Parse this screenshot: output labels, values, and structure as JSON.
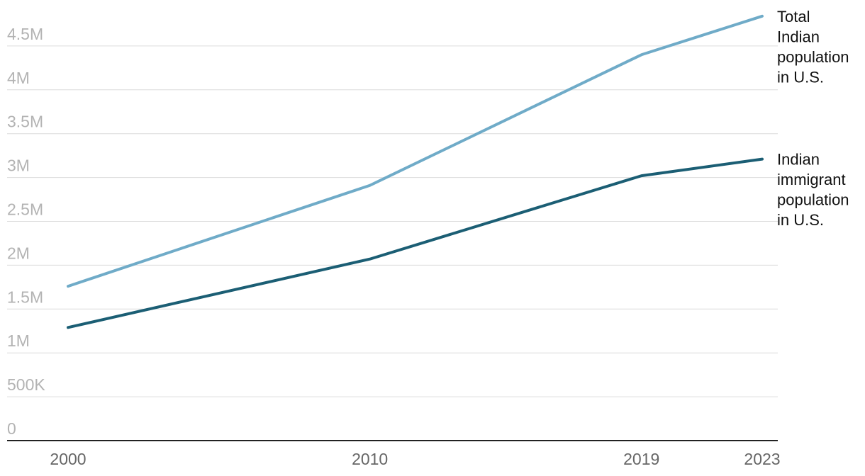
{
  "chart_data": {
    "type": "line",
    "title": "",
    "xlabel": "",
    "ylabel": "",
    "x": [
      2000,
      2010,
      2019,
      2023
    ],
    "ylim": [
      0,
      4800000
    ],
    "y_ticks": [
      {
        "value": 0,
        "label": "0"
      },
      {
        "value": 500000,
        "label": "500K"
      },
      {
        "value": 1000000,
        "label": "1M"
      },
      {
        "value": 1500000,
        "label": "1.5M"
      },
      {
        "value": 2000000,
        "label": "2M"
      },
      {
        "value": 2500000,
        "label": "2.5M"
      },
      {
        "value": 3000000,
        "label": "3M"
      },
      {
        "value": 3500000,
        "label": "3.5M"
      },
      {
        "value": 4000000,
        "label": "4M"
      },
      {
        "value": 4500000,
        "label": "4.5M"
      }
    ],
    "x_ticks": [
      "2000",
      "2010",
      "2019",
      "2023"
    ],
    "grid": true,
    "legend": "direct labels at line ends (right)",
    "series": [
      {
        "name": "Total Indian population in U.S.",
        "label_lines": [
          "Total",
          "Indian",
          "population",
          "in U.S."
        ],
        "color": "#6fabc8",
        "values": [
          1760000,
          2910000,
          4400000,
          4840000
        ]
      },
      {
        "name": "Indian immigrant population in U.S.",
        "label_lines": [
          "Indian",
          "immigrant",
          "population",
          "in U.S."
        ],
        "color": "#1b5e74",
        "values": [
          1290000,
          2070000,
          3020000,
          3210000
        ]
      }
    ]
  }
}
